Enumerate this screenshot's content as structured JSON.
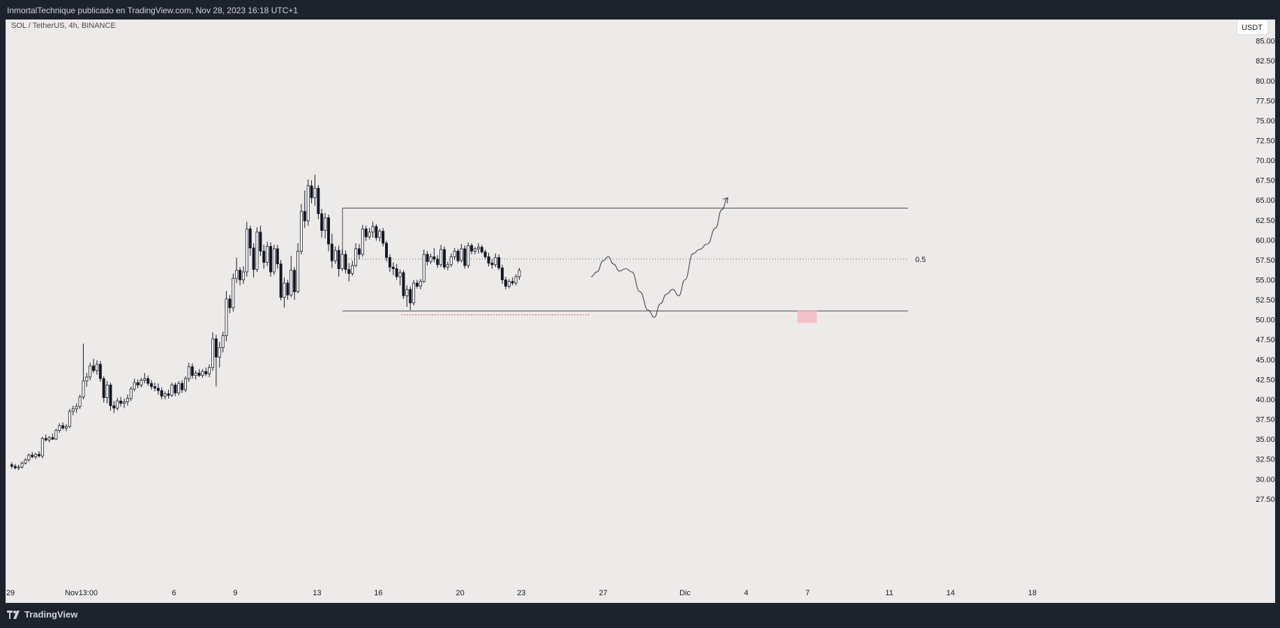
{
  "header": {
    "published_text": "InmortalTechnique publicado en TradingView.com, Nov 28, 2023 16:18 UTC+1"
  },
  "footer": {
    "brand": "TradingView"
  },
  "chart_data": {
    "type": "candlestick",
    "symbol_label": "SOL / TetherUS, 4h, BINANCE",
    "currency_label": "USDT",
    "ylim": [
      27.5,
      87.0
    ],
    "y_ticks": [
      "85.00",
      "82.50",
      "80.00",
      "77.50",
      "75.00",
      "72.50",
      "70.00",
      "67.50",
      "65.00",
      "62.50",
      "60.00",
      "57.50",
      "55.00",
      "52.50",
      "50.00",
      "47.50",
      "45.00",
      "42.50",
      "40.00",
      "37.50",
      "35.00",
      "32.50",
      "30.00",
      "27.50"
    ],
    "x_ticks": [
      {
        "label": "29",
        "day": 0
      },
      {
        "label": "Nov",
        "day": 3
      },
      {
        "label": "13:00",
        "day": 3.8
      },
      {
        "label": "6",
        "day": 8
      },
      {
        "label": "9",
        "day": 11
      },
      {
        "label": "13",
        "day": 15
      },
      {
        "label": "16",
        "day": 18
      },
      {
        "label": "20",
        "day": 22
      },
      {
        "label": "23",
        "day": 25
      },
      {
        "label": "27",
        "day": 29
      },
      {
        "label": "Dic",
        "day": 33
      },
      {
        "label": "4",
        "day": 36
      },
      {
        "label": "7",
        "day": 39
      },
      {
        "label": "11",
        "day": 43
      },
      {
        "label": "14",
        "day": 46
      },
      {
        "label": "18",
        "day": 50
      }
    ],
    "colors": {
      "up": "#ffffff",
      "down": "#131722",
      "wick": "#131722",
      "drawing": "#434651",
      "dotted_line": "#ef5350",
      "highlight": "#f4b6c2",
      "background": "#edebea"
    },
    "candles_ohlc": [
      [
        31.8,
        32.1,
        31.3,
        31.6
      ],
      [
        31.6,
        31.9,
        31.2,
        31.4
      ],
      [
        31.4,
        31.8,
        31.1,
        31.5
      ],
      [
        31.5,
        32.2,
        31.3,
        32.0
      ],
      [
        32.0,
        32.6,
        31.8,
        32.4
      ],
      [
        32.4,
        33.2,
        32.2,
        33.0
      ],
      [
        33.0,
        33.4,
        32.6,
        32.8
      ],
      [
        32.8,
        33.3,
        32.5,
        33.1
      ],
      [
        33.1,
        33.5,
        32.7,
        32.9
      ],
      [
        32.9,
        35.3,
        32.6,
        35.1
      ],
      [
        35.1,
        35.6,
        34.7,
        34.9
      ],
      [
        34.9,
        35.4,
        34.6,
        35.2
      ],
      [
        35.2,
        35.7,
        34.9,
        35.0
      ],
      [
        35.0,
        36.3,
        34.9,
        36.1
      ],
      [
        36.1,
        37.0,
        35.8,
        36.7
      ],
      [
        36.7,
        37.1,
        36.2,
        36.4
      ],
      [
        36.4,
        36.9,
        36.0,
        36.6
      ],
      [
        36.6,
        38.8,
        36.4,
        38.5
      ],
      [
        38.5,
        39.2,
        38.0,
        38.8
      ],
      [
        38.8,
        39.5,
        38.3,
        39.1
      ],
      [
        39.1,
        40.6,
        38.8,
        40.3
      ],
      [
        40.3,
        47.0,
        40.0,
        42.3
      ],
      [
        42.3,
        43.3,
        41.6,
        42.8
      ],
      [
        42.8,
        44.6,
        42.4,
        44.2
      ],
      [
        44.2,
        45.1,
        43.3,
        43.6
      ],
      [
        43.6,
        44.9,
        43.1,
        44.4
      ],
      [
        44.4,
        44.8,
        42.2,
        42.6
      ],
      [
        42.6,
        42.9,
        39.6,
        40.2
      ],
      [
        40.2,
        42.3,
        39.5,
        41.8
      ],
      [
        41.8,
        42.1,
        38.6,
        39.2
      ],
      [
        39.2,
        39.8,
        38.3,
        38.9
      ],
      [
        38.9,
        40.2,
        38.6,
        39.8
      ],
      [
        39.8,
        40.3,
        39.1,
        39.5
      ],
      [
        39.5,
        40.1,
        38.9,
        39.7
      ],
      [
        39.7,
        40.6,
        39.2,
        40.1
      ],
      [
        40.1,
        41.6,
        39.8,
        41.3
      ],
      [
        41.3,
        42.6,
        41.0,
        42.1
      ],
      [
        42.1,
        42.5,
        41.4,
        41.8
      ],
      [
        41.8,
        42.7,
        41.5,
        42.4
      ],
      [
        42.4,
        43.3,
        42.0,
        42.6
      ],
      [
        42.6,
        43.0,
        41.7,
        42.0
      ],
      [
        42.0,
        42.4,
        41.2,
        41.6
      ],
      [
        41.6,
        42.1,
        41.0,
        41.4
      ],
      [
        41.4,
        42.0,
        40.6,
        41.1
      ],
      [
        41.1,
        41.5,
        40.0,
        40.4
      ],
      [
        40.4,
        41.0,
        40.0,
        40.7
      ],
      [
        40.7,
        41.2,
        40.1,
        40.5
      ],
      [
        40.5,
        42.1,
        40.3,
        41.8
      ],
      [
        41.8,
        42.1,
        40.4,
        40.8
      ],
      [
        40.8,
        42.3,
        40.5,
        42.0
      ],
      [
        42.0,
        42.4,
        40.8,
        41.2
      ],
      [
        41.2,
        42.9,
        40.9,
        42.6
      ],
      [
        42.6,
        44.6,
        42.2,
        44.1
      ],
      [
        44.1,
        44.5,
        42.6,
        43.0
      ],
      [
        43.0,
        43.6,
        42.5,
        43.3
      ],
      [
        43.3,
        43.8,
        42.8,
        43.0
      ],
      [
        43.0,
        43.8,
        42.7,
        43.5
      ],
      [
        43.5,
        44.0,
        42.9,
        43.2
      ],
      [
        43.2,
        44.4,
        42.8,
        44.0
      ],
      [
        44.0,
        48.4,
        43.6,
        47.6
      ],
      [
        47.6,
        48.1,
        41.6,
        45.3
      ],
      [
        45.3,
        47.2,
        44.0,
        46.5
      ],
      [
        46.5,
        48.5,
        45.9,
        48.0
      ],
      [
        48.0,
        53.6,
        47.3,
        52.6
      ],
      [
        52.6,
        53.1,
        50.8,
        51.5
      ],
      [
        51.5,
        55.8,
        51.0,
        55.2
      ],
      [
        55.2,
        57.8,
        54.6,
        56.2
      ],
      [
        56.2,
        56.6,
        54.3,
        55.0
      ],
      [
        55.0,
        56.7,
        54.5,
        56.0
      ],
      [
        56.0,
        62.3,
        55.4,
        61.4
      ],
      [
        61.4,
        61.8,
        58.0,
        59.0
      ],
      [
        59.0,
        59.6,
        55.3,
        56.3
      ],
      [
        56.3,
        61.6,
        56.0,
        61.0
      ],
      [
        61.0,
        61.8,
        58.0,
        58.6
      ],
      [
        58.6,
        59.4,
        56.4,
        57.2
      ],
      [
        57.2,
        59.8,
        56.7,
        59.2
      ],
      [
        59.2,
        59.7,
        55.4,
        56.0
      ],
      [
        56.0,
        59.4,
        55.6,
        58.9
      ],
      [
        58.9,
        59.4,
        56.4,
        57.0
      ],
      [
        57.0,
        57.5,
        52.4,
        52.8
      ],
      [
        52.8,
        55.3,
        51.5,
        54.6
      ],
      [
        54.6,
        55.0,
        52.5,
        53.1
      ],
      [
        53.1,
        58.0,
        52.8,
        56.2
      ],
      [
        56.2,
        56.6,
        52.5,
        53.5
      ],
      [
        53.5,
        59.6,
        53.3,
        58.6
      ],
      [
        58.6,
        64.5,
        58.2,
        63.6
      ],
      [
        63.6,
        66.2,
        61.5,
        62.4
      ],
      [
        62.4,
        67.6,
        61.8,
        66.8
      ],
      [
        66.8,
        67.5,
        64.6,
        65.3
      ],
      [
        65.3,
        68.2,
        64.3,
        66.5
      ],
      [
        66.5,
        66.9,
        62.6,
        63.3
      ],
      [
        63.3,
        63.9,
        60.3,
        61.2
      ],
      [
        61.2,
        63.4,
        60.2,
        62.8
      ],
      [
        62.8,
        63.2,
        58.6,
        59.5
      ],
      [
        59.5,
        60.8,
        56.5,
        57.4
      ],
      [
        57.4,
        59.2,
        57.0,
        58.7
      ],
      [
        58.7,
        59.3,
        55.4,
        56.4
      ],
      [
        56.4,
        58.8,
        56.1,
        58.2
      ],
      [
        58.2,
        58.7,
        55.8,
        56.3
      ],
      [
        56.3,
        57.1,
        54.8,
        55.8
      ],
      [
        55.8,
        57.4,
        55.5,
        56.8
      ],
      [
        56.8,
        59.6,
        56.6,
        58.9
      ],
      [
        58.9,
        59.5,
        57.6,
        58.2
      ],
      [
        58.2,
        61.9,
        57.9,
        61.4
      ],
      [
        61.4,
        61.8,
        59.9,
        60.4
      ],
      [
        60.4,
        61.5,
        60.1,
        61.0
      ],
      [
        61.0,
        62.3,
        60.3,
        61.7
      ],
      [
        61.7,
        62.0,
        59.9,
        60.3
      ],
      [
        60.3,
        61.4,
        59.8,
        61.1
      ],
      [
        61.1,
        61.5,
        59.2,
        59.6
      ],
      [
        59.6,
        59.9,
        57.3,
        57.8
      ],
      [
        57.8,
        58.2,
        56.0,
        56.6
      ],
      [
        56.6,
        57.2,
        55.6,
        56.4
      ],
      [
        56.4,
        57.0,
        55.0,
        55.4
      ],
      [
        55.4,
        56.3,
        54.3,
        55.9
      ],
      [
        55.9,
        56.2,
        52.6,
        53.0
      ],
      [
        53.0,
        54.3,
        51.6,
        53.8
      ],
      [
        53.8,
        54.2,
        51.2,
        52.1
      ],
      [
        52.1,
        55.0,
        51.8,
        54.6
      ],
      [
        54.6,
        55.0,
        53.9,
        54.2
      ],
      [
        54.2,
        55.1,
        53.8,
        54.8
      ],
      [
        54.8,
        58.8,
        54.6,
        58.2
      ],
      [
        58.2,
        58.6,
        56.8,
        57.3
      ],
      [
        57.3,
        58.3,
        57.0,
        57.9
      ],
      [
        57.9,
        59.0,
        57.2,
        57.6
      ],
      [
        57.6,
        58.1,
        56.5,
        56.9
      ],
      [
        56.9,
        59.4,
        56.6,
        58.8
      ],
      [
        58.8,
        59.2,
        56.3,
        56.6
      ],
      [
        56.6,
        57.3,
        56.2,
        56.9
      ],
      [
        56.9,
        58.3,
        56.6,
        57.9
      ],
      [
        57.9,
        59.0,
        57.5,
        58.6
      ],
      [
        58.6,
        58.9,
        57.1,
        57.4
      ],
      [
        57.4,
        59.5,
        57.2,
        58.9
      ],
      [
        58.9,
        59.3,
        56.4,
        56.8
      ],
      [
        56.8,
        59.7,
        56.5,
        59.3
      ],
      [
        59.3,
        59.6,
        58.2,
        58.6
      ],
      [
        58.6,
        59.1,
        58.2,
        58.9
      ],
      [
        58.9,
        59.6,
        58.3,
        59.1
      ],
      [
        59.1,
        59.4,
        58.3,
        58.5
      ],
      [
        58.5,
        58.8,
        57.6,
        57.9
      ],
      [
        57.9,
        58.4,
        56.7,
        57.1
      ],
      [
        57.1,
        57.6,
        56.4,
        56.9
      ],
      [
        56.9,
        58.3,
        56.6,
        57.8
      ],
      [
        57.8,
        58.2,
        56.2,
        56.5
      ],
      [
        56.5,
        56.9,
        54.5,
        55.0
      ],
      [
        55.0,
        55.4,
        53.8,
        54.2
      ],
      [
        54.2,
        55.1,
        53.9,
        54.8
      ],
      [
        54.8,
        55.3,
        54.3,
        54.6
      ],
      [
        54.6,
        55.7,
        54.3,
        55.4
      ],
      [
        55.4,
        56.5,
        55.0,
        56.2
      ]
    ],
    "drawings": {
      "range_top": 64.0,
      "range_bottom": 51.1,
      "range_mid": 57.6,
      "mid_label": "0.5",
      "previous_low_price": 50.6,
      "target_zone": [
        49.6,
        51.2
      ],
      "projection_path": [
        [
          28.4,
          55.4
        ],
        [
          28.7,
          56.0
        ],
        [
          29.0,
          57.4
        ],
        [
          29.25,
          57.9
        ],
        [
          29.5,
          57.0
        ],
        [
          29.8,
          56.1
        ],
        [
          30.1,
          56.4
        ],
        [
          30.4,
          56.0
        ],
        [
          30.8,
          53.5
        ],
        [
          31.2,
          51.2
        ],
        [
          31.5,
          50.3
        ],
        [
          31.8,
          52.0
        ],
        [
          32.1,
          53.2
        ],
        [
          32.4,
          53.8
        ],
        [
          32.7,
          53.0
        ],
        [
          33.0,
          55.0
        ],
        [
          33.4,
          58.3
        ],
        [
          33.7,
          58.8
        ],
        [
          34.1,
          59.5
        ],
        [
          34.5,
          61.5
        ],
        [
          34.8,
          63.8
        ],
        [
          35.1,
          65.3
        ]
      ]
    }
  }
}
